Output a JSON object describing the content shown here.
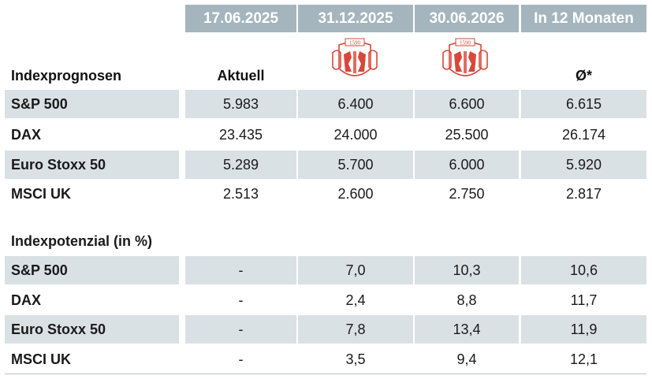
{
  "columns": {
    "h1": "17.06.2025",
    "h2": "31.12.2025",
    "h3": "30.06.2026",
    "h4": "In 12 Monaten"
  },
  "subheader": {
    "label": "Indexprognosen",
    "aktuell": "Aktuell",
    "avg": "Ø*",
    "seal_text": "1590"
  },
  "prognosen": [
    {
      "name": "S&P 500",
      "v1": "5.983",
      "v2": "6.400",
      "v3": "6.600",
      "v4": "6.615"
    },
    {
      "name": "DAX",
      "v1": "23.435",
      "v2": "24.000",
      "v3": "25.500",
      "v4": "26.174"
    },
    {
      "name": "Euro Stoxx 50",
      "v1": "5.289",
      "v2": "5.700",
      "v3": "6.000",
      "v4": "5.920"
    },
    {
      "name": "MSCI UK",
      "v1": "2.513",
      "v2": "2.600",
      "v3": "2.750",
      "v4": "2.817"
    }
  ],
  "potenzial_title": "Indexpotenzial (in %)",
  "potenzial": [
    {
      "name": "S&P 500",
      "v1": "-",
      "v2": "7,0",
      "v3": "10,3",
      "v4": "10,6"
    },
    {
      "name": "DAX",
      "v1": "-",
      "v2": "2,4",
      "v3": "8,8",
      "v4": "11,7"
    },
    {
      "name": "Euro Stoxx 50",
      "v1": "-",
      "v2": "7,8",
      "v3": "13,4",
      "v4": "11,9"
    },
    {
      "name": "MSCI UK",
      "v1": "-",
      "v2": "3,5",
      "v3": "9,4",
      "v4": "12,1"
    }
  ],
  "colors": {
    "header_bg": "#a5b5be",
    "band_bg": "#dae1e5",
    "seal_red": "#d9473a"
  }
}
